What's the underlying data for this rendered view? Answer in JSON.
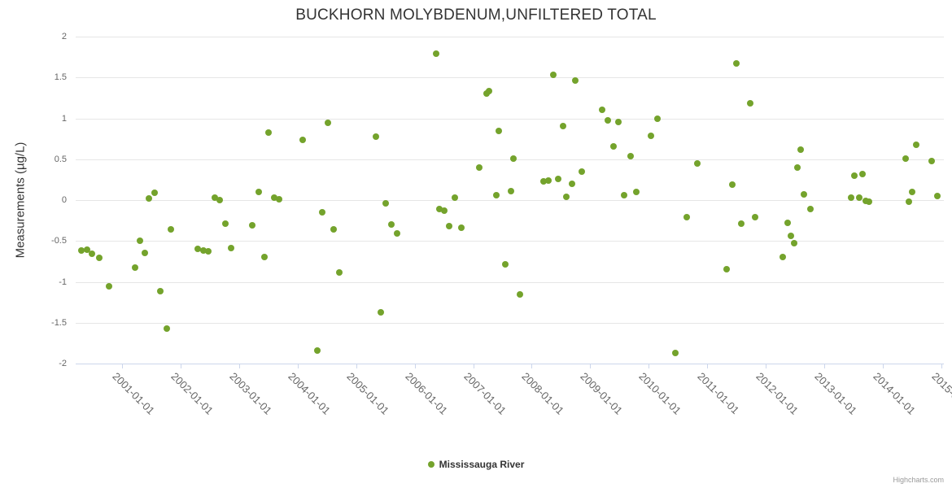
{
  "chart": {
    "title": "BUCKHORN MOLYBDENUM,UNFILTERED TOTAL",
    "y_axis_title": "Measurements (µg/L)",
    "credits_label": "Highcharts.com"
  },
  "chart_data": {
    "type": "scatter",
    "title": "BUCKHORN MOLYBDENUM,UNFILTERED TOTAL",
    "xlabel": "",
    "ylabel": "Measurements (µg/L)",
    "ylim": [
      -2,
      2
    ],
    "y_ticks": [
      2,
      1.5,
      1,
      0.5,
      0,
      -0.5,
      -1,
      -1.5,
      -2
    ],
    "x_ticks": [
      "2001-01-01",
      "2002-01-01",
      "2003-01-01",
      "2004-01-01",
      "2005-01-01",
      "2006-01-01",
      "2007-01-01",
      "2008-01-01",
      "2009-01-01",
      "2010-01-01",
      "2011-01-01",
      "2012-01-01",
      "2013-01-01",
      "2014-01-01",
      "2015-01-01"
    ],
    "x_range_years": [
      2000.21,
      2015.04
    ],
    "grid": "horizontal",
    "legend_position": "bottom-center",
    "colors": {
      "point": "#74a32c",
      "grid": "#e6e6e6",
      "axis_line": "#ccd6eb",
      "tick_label": "#666666",
      "title": "#333333",
      "credits": "#999999"
    },
    "series": [
      {
        "name": "Mississauga River",
        "points": [
          [
            "2000-04-20",
            -0.62
          ],
          [
            "2000-05-25",
            -0.61
          ],
          [
            "2000-06-25",
            -0.66
          ],
          [
            "2000-08-10",
            -0.71
          ],
          [
            "2000-10-10",
            -1.05
          ],
          [
            "2001-03-20",
            -0.83
          ],
          [
            "2001-04-20",
            -0.5
          ],
          [
            "2001-05-20",
            -0.65
          ],
          [
            "2001-06-15",
            0.02
          ],
          [
            "2001-07-20",
            0.09
          ],
          [
            "2001-08-25",
            -1.11
          ],
          [
            "2001-10-05",
            -1.57
          ],
          [
            "2001-11-01",
            -0.36
          ],
          [
            "2002-04-15",
            -0.6
          ],
          [
            "2002-05-20",
            -0.62
          ],
          [
            "2002-06-25",
            -0.63
          ],
          [
            "2002-08-01",
            0.03
          ],
          [
            "2002-09-01",
            0.0
          ],
          [
            "2002-10-05",
            -0.29
          ],
          [
            "2002-11-10",
            -0.59
          ],
          [
            "2003-03-25",
            -0.31
          ],
          [
            "2003-05-01",
            0.1
          ],
          [
            "2003-06-05",
            -0.7
          ],
          [
            "2003-07-01",
            0.83
          ],
          [
            "2003-08-10",
            0.03
          ],
          [
            "2003-09-10",
            0.01
          ],
          [
            "2004-02-05",
            0.74
          ],
          [
            "2004-05-01",
            -1.84
          ],
          [
            "2004-06-05",
            -0.15
          ],
          [
            "2004-07-10",
            0.95
          ],
          [
            "2004-08-15",
            -0.36
          ],
          [
            "2004-09-20",
            -0.89
          ],
          [
            "2005-05-05",
            0.78
          ],
          [
            "2005-06-01",
            -1.37
          ],
          [
            "2005-07-05",
            -0.04
          ],
          [
            "2005-08-10",
            -0.3
          ],
          [
            "2005-09-15",
            -0.41
          ],
          [
            "2006-05-15",
            1.79
          ],
          [
            "2006-06-01",
            -0.11
          ],
          [
            "2006-07-05",
            -0.13
          ],
          [
            "2006-08-05",
            -0.32
          ],
          [
            "2006-09-10",
            0.03
          ],
          [
            "2006-10-20",
            -0.34
          ],
          [
            "2007-02-10",
            0.4
          ],
          [
            "2007-03-25",
            1.3
          ],
          [
            "2007-04-10",
            1.33
          ],
          [
            "2007-05-25",
            0.06
          ],
          [
            "2007-06-10",
            0.85
          ],
          [
            "2007-07-20",
            -0.79
          ],
          [
            "2007-08-25",
            0.11
          ],
          [
            "2007-09-10",
            0.51
          ],
          [
            "2007-10-20",
            -1.15
          ],
          [
            "2008-03-15",
            0.23
          ],
          [
            "2008-04-15",
            0.24
          ],
          [
            "2008-05-15",
            1.53
          ],
          [
            "2008-06-15",
            0.26
          ],
          [
            "2008-07-15",
            0.91
          ],
          [
            "2008-08-05",
            0.04
          ],
          [
            "2008-09-10",
            0.2
          ],
          [
            "2008-10-01",
            1.46
          ],
          [
            "2008-11-10",
            0.35
          ],
          [
            "2009-03-15",
            1.1
          ],
          [
            "2009-04-20",
            0.98
          ],
          [
            "2009-05-25",
            0.66
          ],
          [
            "2009-06-25",
            0.96
          ],
          [
            "2009-08-01",
            0.06
          ],
          [
            "2009-09-10",
            0.54
          ],
          [
            "2009-10-15",
            0.1
          ],
          [
            "2010-01-15",
            0.79
          ],
          [
            "2010-02-25",
            1.0
          ],
          [
            "2010-06-15",
            -1.87
          ],
          [
            "2010-08-25",
            -0.21
          ],
          [
            "2010-11-01",
            0.45
          ],
          [
            "2011-05-01",
            -0.85
          ],
          [
            "2011-06-05",
            0.19
          ],
          [
            "2011-07-01",
            1.67
          ],
          [
            "2011-08-01",
            -0.29
          ],
          [
            "2011-09-25",
            1.18
          ],
          [
            "2011-10-25",
            -0.21
          ],
          [
            "2012-04-15",
            -0.7
          ],
          [
            "2012-05-15",
            -0.28
          ],
          [
            "2012-06-05",
            -0.44
          ],
          [
            "2012-06-25",
            -0.53
          ],
          [
            "2012-07-15",
            0.4
          ],
          [
            "2012-08-05",
            0.62
          ],
          [
            "2012-08-25",
            0.07
          ],
          [
            "2012-10-05",
            -0.11
          ],
          [
            "2013-06-15",
            0.03
          ],
          [
            "2013-07-05",
            0.3
          ],
          [
            "2013-08-05",
            0.03
          ],
          [
            "2013-08-25",
            0.32
          ],
          [
            "2013-09-15",
            -0.01
          ],
          [
            "2013-10-05",
            -0.02
          ],
          [
            "2014-05-20",
            0.51
          ],
          [
            "2014-06-10",
            -0.02
          ],
          [
            "2014-07-01",
            0.1
          ],
          [
            "2014-07-25",
            0.68
          ],
          [
            "2014-11-01",
            0.48
          ],
          [
            "2014-12-05",
            0.05
          ]
        ]
      }
    ]
  }
}
